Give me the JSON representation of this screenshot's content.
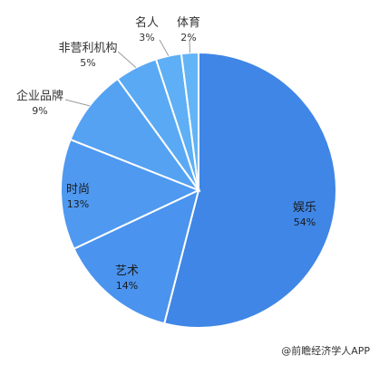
{
  "chart_data": {
    "type": "pie",
    "title": "",
    "start": "12 o'clock",
    "direction": "clockwise",
    "slices": [
      {
        "name": "娱乐",
        "value": 54,
        "pct_label": "54%",
        "color": "#3f86e6"
      },
      {
        "name": "艺术",
        "value": 14,
        "pct_label": "14%",
        "color": "#4a93ee"
      },
      {
        "name": "时尚",
        "value": 13,
        "pct_label": "13%",
        "color": "#4f99f0"
      },
      {
        "name": "企业品牌",
        "value": 9,
        "pct_label": "9%",
        "color": "#55a2f2"
      },
      {
        "name": "非营利机构",
        "value": 5,
        "pct_label": "5%",
        "color": "#5aa9f4"
      },
      {
        "name": "名人",
        "value": 3,
        "pct_label": "3%",
        "color": "#5eaff5"
      },
      {
        "name": "体育",
        "value": 2,
        "pct_label": "2%",
        "color": "#62b4f6"
      }
    ],
    "label_colors": {
      "inside": "#1a1a1a",
      "outside": "#333333"
    },
    "slice_border": "#ffffff"
  },
  "credit": "@前瞻经济学人APP"
}
